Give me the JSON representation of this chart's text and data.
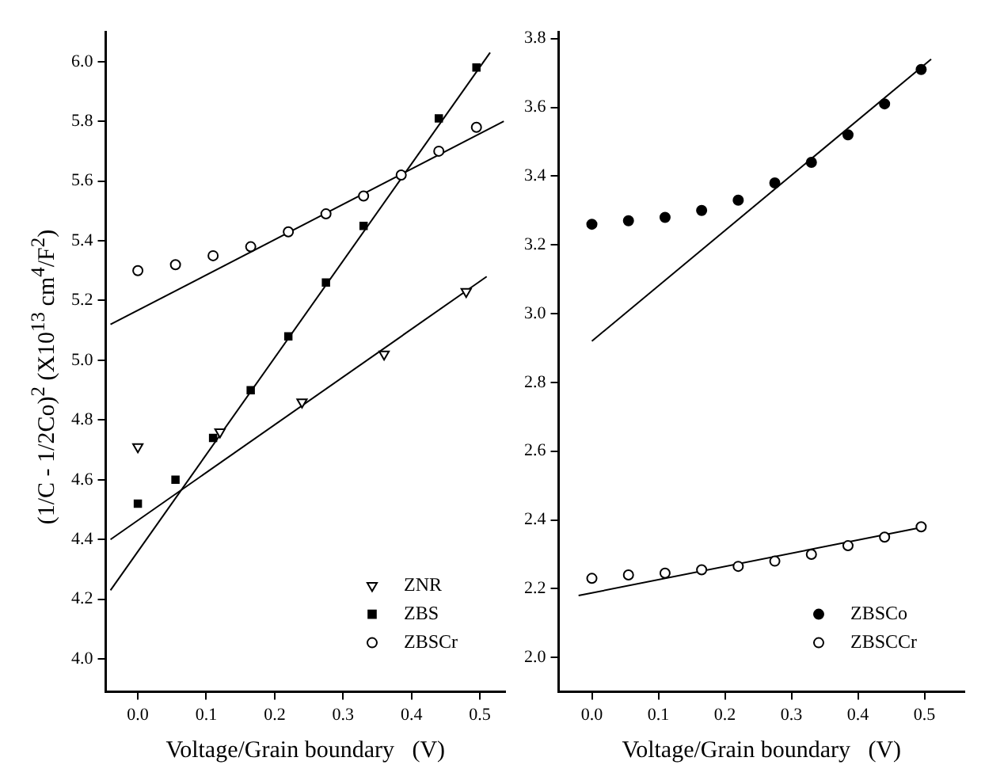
{
  "chart_data": [
    {
      "type": "scatter",
      "ylabel": "(1/C - 1/2Co)$^{2}$   (X10$^{13}$ cm$^{4}$/F$^{2}$)",
      "xlabel": "Voltage/Grain boundary   (V)",
      "xlim": [
        -0.047,
        0.537
      ],
      "xticks": [
        {
          "value": 0,
          "label": "0.0"
        },
        {
          "value": 0.1,
          "label": "0.1"
        },
        {
          "value": 0.2,
          "label": "0.2"
        },
        {
          "value": 0.3,
          "label": "0.3"
        },
        {
          "value": 0.4,
          "label": "0.4"
        },
        {
          "value": 0.5,
          "label": "0.5"
        }
      ],
      "ylim": [
        3.89,
        6.1
      ],
      "yticks": [
        {
          "value": 4,
          "label": "4.0"
        },
        {
          "value": 4.2,
          "label": "4.2"
        },
        {
          "value": 4.4,
          "label": "4.4"
        },
        {
          "value": 4.6,
          "label": "4.6"
        },
        {
          "value": 4.8,
          "label": "4.8"
        },
        {
          "value": 5,
          "label": "5.0"
        },
        {
          "value": 5.2,
          "label": "5.2"
        },
        {
          "value": 5.4,
          "label": "5.4"
        },
        {
          "value": 5.6,
          "label": "5.6"
        },
        {
          "value": 5.8,
          "label": "5.8"
        },
        {
          "value": 6,
          "label": "6.0"
        }
      ],
      "grid": false,
      "legend": "bottom right",
      "series": [
        {
          "name": "ZNR",
          "color": "#ffffff",
          "marker": "triangle",
          "x": [
            0,
            0.12,
            0.24,
            0.36,
            0.48
          ],
          "values": [
            4.71,
            4.76,
            4.86,
            5.02,
            5.23
          ]
        },
        {
          "name": "ZBS",
          "color": "#000000",
          "marker": "square",
          "x": [
            0,
            0.055,
            0.11,
            0.165,
            0.22,
            0.275,
            0.33,
            0.385,
            0.44,
            0.495
          ],
          "values": [
            4.52,
            4.6,
            4.74,
            4.9,
            5.08,
            5.26,
            5.45,
            null,
            5.81,
            5.98
          ]
        },
        {
          "name": "ZBSCr",
          "color": "#ffffff",
          "marker": "circle",
          "x": [
            0,
            0.055,
            0.11,
            0.165,
            0.22,
            0.275,
            0.33,
            0.385,
            0.44,
            0.495
          ],
          "values": [
            5.3,
            5.32,
            5.35,
            5.38,
            5.43,
            5.49,
            5.55,
            5.62,
            5.7,
            5.78
          ]
        },
        {
          "type": "line",
          "color": "#000000",
          "marker": "none",
          "x": [
            -0.04,
            0.51
          ],
          "values": [
            4.4,
            5.28
          ]
        },
        {
          "type": "line",
          "color": "#000000",
          "marker": "none",
          "x": [
            -0.04,
            0.515
          ],
          "values": [
            4.23,
            6.03
          ]
        },
        {
          "type": "line",
          "color": "#000000",
          "marker": "none",
          "x": [
            -0.04,
            0.535
          ],
          "values": [
            5.12,
            5.8
          ]
        }
      ]
    },
    {
      "type": "scatter",
      "xlabel": "Voltage/Grain boundary   (V)",
      "xlim": [
        -0.05,
        0.56
      ],
      "xticks": [
        {
          "value": 0,
          "label": "0.0"
        },
        {
          "value": 0.1,
          "label": "0.1"
        },
        {
          "value": 0.2,
          "label": "0.2"
        },
        {
          "value": 0.3,
          "label": "0.3"
        },
        {
          "value": 0.4,
          "label": "0.4"
        },
        {
          "value": 0.5,
          "label": "0.5"
        }
      ],
      "ylim": [
        1.9,
        3.82
      ],
      "yticks": [
        {
          "value": 2,
          "label": "2.0"
        },
        {
          "value": 2.2,
          "label": "2.2"
        },
        {
          "value": 2.4,
          "label": "2.4"
        },
        {
          "value": 2.6,
          "label": "2.6"
        },
        {
          "value": 2.8,
          "label": "2.8"
        },
        {
          "value": 3,
          "label": "3.0"
        },
        {
          "value": 3.2,
          "label": "3.2"
        },
        {
          "value": 3.4,
          "label": "3.4"
        },
        {
          "value": 3.6,
          "label": "3.6"
        },
        {
          "value": 3.8,
          "label": "3.8"
        }
      ],
      "grid": false,
      "legend": "bottom right",
      "series": [
        {
          "name": "ZBSCo",
          "color": "#000000",
          "marker": "circle",
          "x": [
            0,
            0.055,
            0.11,
            0.165,
            0.22,
            0.275,
            0.33,
            0.385,
            0.44,
            0.495
          ],
          "values": [
            3.26,
            3.27,
            3.28,
            3.3,
            3.33,
            3.38,
            3.44,
            3.52,
            3.61,
            3.71
          ]
        },
        {
          "name": "ZBSCCr",
          "color": "#ffffff",
          "marker": "circle",
          "x": [
            0,
            0.055,
            0.11,
            0.165,
            0.22,
            0.275,
            0.33,
            0.385,
            0.44,
            0.495
          ],
          "values": [
            2.23,
            2.24,
            2.245,
            2.255,
            2.265,
            2.28,
            2.3,
            2.325,
            2.35,
            2.38
          ]
        },
        {
          "type": "line",
          "color": "#000000",
          "marker": "none",
          "x": [
            0,
            0.51
          ],
          "values": [
            2.92,
            3.74
          ]
        },
        {
          "type": "line",
          "color": "#000000",
          "marker": "none",
          "x": [
            -0.02,
            0.5
          ],
          "values": [
            2.18,
            2.38
          ]
        }
      ]
    }
  ]
}
